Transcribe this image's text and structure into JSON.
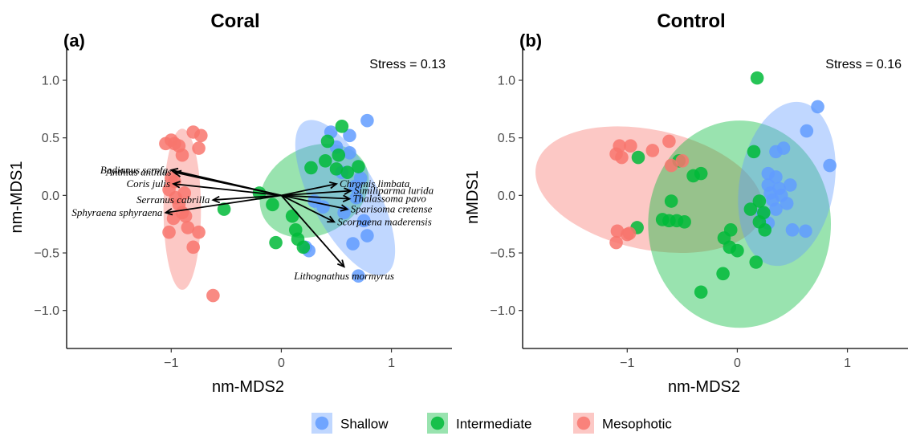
{
  "legend": {
    "items": [
      {
        "label": "Shallow",
        "color": "#619CFF"
      },
      {
        "label": "Intermediate",
        "color": "#00BA38"
      },
      {
        "label": "Mesophotic",
        "color": "#F8766D"
      }
    ]
  },
  "chart_data": [
    {
      "type": "scatter",
      "title": "Coral",
      "panel_label": "(a)",
      "annotation": "Stress = 0.13",
      "xlabel": "nm-MDS2",
      "ylabel": "nm-MDS1",
      "xlim": [
        -1.95,
        1.55
      ],
      "ylim": [
        -1.33,
        1.3
      ],
      "xticks": [
        -1,
        0,
        1
      ],
      "yticks": [
        -1.0,
        -0.5,
        0.0,
        0.5,
        1.0
      ],
      "xtick_labels": [
        "−1",
        "0",
        "1"
      ],
      "ytick_labels": [
        "−1.0",
        "−0.5",
        "0.0",
        "0.5",
        "1.0"
      ],
      "ellipses": [
        {
          "group": "Mesophotic",
          "cx": -0.9,
          "cy": -0.12,
          "rx": 0.17,
          "ry": 0.7,
          "angle": 0
        },
        {
          "group": "Intermediate",
          "cx": 0.3,
          "cy": 0.04,
          "rx": 0.52,
          "ry": 0.38,
          "angle": 28
        },
        {
          "group": "Shallow",
          "cx": 0.58,
          "cy": -0.02,
          "rx": 0.3,
          "ry": 0.75,
          "angle": 28
        }
      ],
      "series": [
        {
          "name": "Shallow",
          "points": [
            [
              0.78,
              0.65
            ],
            [
              0.62,
              0.52
            ],
            [
              0.45,
              0.55
            ],
            [
              0.62,
              0.37
            ],
            [
              0.55,
              0.2
            ],
            [
              0.72,
              0.15
            ],
            [
              0.67,
              0.08
            ],
            [
              0.68,
              -0.02
            ],
            [
              0.57,
              -0.15
            ],
            [
              0.75,
              -0.22
            ],
            [
              0.78,
              -0.35
            ],
            [
              0.65,
              -0.42
            ],
            [
              0.22,
              -0.45
            ],
            [
              0.25,
              -0.48
            ],
            [
              0.7,
              -0.7
            ],
            [
              0.38,
              -0.1
            ],
            [
              0.3,
              -0.05
            ],
            [
              0.5,
              0.42
            ]
          ]
        },
        {
          "name": "Intermediate",
          "points": [
            [
              0.55,
              0.6
            ],
            [
              0.42,
              0.47
            ],
            [
              0.52,
              0.35
            ],
            [
              0.5,
              0.23
            ],
            [
              0.4,
              0.3
            ],
            [
              0.27,
              0.24
            ],
            [
              0.7,
              0.25
            ],
            [
              -0.2,
              0.02
            ],
            [
              -0.08,
              -0.08
            ],
            [
              0.1,
              -0.18
            ],
            [
              0.13,
              -0.3
            ],
            [
              0.15,
              -0.38
            ],
            [
              -0.05,
              -0.41
            ],
            [
              0.2,
              -0.45
            ],
            [
              0.6,
              0.2
            ],
            [
              -0.52,
              -0.12
            ]
          ]
        },
        {
          "name": "Mesophotic",
          "points": [
            [
              -1.05,
              0.45
            ],
            [
              -1.0,
              0.48
            ],
            [
              -0.97,
              0.45
            ],
            [
              -0.93,
              0.43
            ],
            [
              -0.8,
              0.55
            ],
            [
              -0.73,
              0.52
            ],
            [
              -0.9,
              0.35
            ],
            [
              -0.75,
              0.41
            ],
            [
              -1.0,
              0.15
            ],
            [
              -0.97,
              0.12
            ],
            [
              -1.02,
              0.05
            ],
            [
              -0.96,
              -0.02
            ],
            [
              -0.93,
              -0.08
            ],
            [
              -0.9,
              -0.15
            ],
            [
              -0.87,
              -0.18
            ],
            [
              -0.98,
              -0.2
            ],
            [
              -0.85,
              -0.28
            ],
            [
              -1.02,
              -0.32
            ],
            [
              -0.75,
              -0.32
            ],
            [
              -0.8,
              -0.45
            ],
            [
              -0.62,
              -0.87
            ],
            [
              -0.88,
              0.02
            ]
          ]
        }
      ],
      "vectors": [
        {
          "label": "Anthias anthias",
          "x": -0.97,
          "y": 0.2
        },
        {
          "label": "Bodianus scrofa",
          "x": -1.0,
          "y": 0.22
        },
        {
          "label": "Coris julis",
          "x": -0.98,
          "y": 0.1
        },
        {
          "label": "Serranus cabrilla",
          "x": -0.62,
          "y": -0.04
        },
        {
          "label": "Sphyraena sphyraena",
          "x": -1.05,
          "y": -0.15
        },
        {
          "label": "Chromis limbata",
          "x": 0.5,
          "y": 0.1
        },
        {
          "label": "Similiparma lurida",
          "x": 0.63,
          "y": 0.04
        },
        {
          "label": "Thalassoma pavo",
          "x": 0.62,
          "y": -0.03
        },
        {
          "label": "Sparisoma cretense",
          "x": 0.6,
          "y": -0.12
        },
        {
          "label": "Scorpaena maderensis",
          "x": 0.48,
          "y": -0.23
        },
        {
          "label": "Lithognathus mormyrus",
          "x": 0.57,
          "y": -0.62
        }
      ]
    },
    {
      "type": "scatter",
      "title": "Control",
      "panel_label": "(b)",
      "annotation": "Stress = 0.16",
      "xlabel": "nm-MDS2",
      "ylabel": "nMDS1",
      "xlim": [
        -1.95,
        1.55
      ],
      "ylim": [
        -1.33,
        1.3
      ],
      "xticks": [
        -1,
        0,
        1
      ],
      "yticks": [
        -1.0,
        -0.5,
        0.0,
        0.5,
        1.0
      ],
      "xtick_labels": [
        "−1",
        "0",
        "1"
      ],
      "ytick_labels": [
        "−1.0",
        "−0.5",
        "0.0",
        "0.5",
        "1.0"
      ],
      "ellipses": [
        {
          "group": "Mesophotic",
          "cx": -0.8,
          "cy": 0.05,
          "rx": 1.05,
          "ry": 0.52,
          "angle": -12
        },
        {
          "group": "Intermediate",
          "cx": 0.02,
          "cy": -0.25,
          "rx": 0.83,
          "ry": 0.9,
          "angle": 0
        },
        {
          "group": "Shallow",
          "cx": 0.45,
          "cy": 0.1,
          "rx": 0.43,
          "ry": 0.72,
          "angle": -10
        }
      ],
      "series": [
        {
          "name": "Shallow",
          "points": [
            [
              0.73,
              0.77
            ],
            [
              0.63,
              0.56
            ],
            [
              0.84,
              0.26
            ],
            [
              0.42,
              0.41
            ],
            [
              0.35,
              0.38
            ],
            [
              0.28,
              0.19
            ],
            [
              0.35,
              0.16
            ],
            [
              0.28,
              0.09
            ],
            [
              0.3,
              0.02
            ],
            [
              0.38,
              0.06
            ],
            [
              0.32,
              -0.04
            ],
            [
              0.48,
              0.09
            ],
            [
              0.45,
              -0.07
            ],
            [
              0.35,
              -0.12
            ],
            [
              0.23,
              -0.16
            ],
            [
              0.5,
              -0.3
            ],
            [
              0.62,
              -0.31
            ],
            [
              0.28,
              -0.24
            ],
            [
              0.4,
              0.0
            ]
          ]
        },
        {
          "name": "Intermediate",
          "points": [
            [
              0.18,
              1.02
            ],
            [
              0.15,
              0.38
            ],
            [
              -0.9,
              0.33
            ],
            [
              -0.91,
              -0.28
            ],
            [
              -0.4,
              0.17
            ],
            [
              -0.33,
              0.19
            ],
            [
              -0.6,
              -0.05
            ],
            [
              -0.68,
              -0.21
            ],
            [
              -0.62,
              -0.22
            ],
            [
              -0.55,
              -0.22
            ],
            [
              -0.48,
              -0.23
            ],
            [
              -0.12,
              -0.37
            ],
            [
              -0.06,
              -0.3
            ],
            [
              -0.07,
              -0.45
            ],
            [
              0.0,
              -0.48
            ],
            [
              -0.13,
              -0.68
            ],
            [
              0.17,
              -0.58
            ],
            [
              -0.33,
              -0.84
            ],
            [
              0.2,
              -0.05
            ],
            [
              0.24,
              -0.15
            ],
            [
              0.2,
              -0.23
            ],
            [
              0.25,
              -0.3
            ],
            [
              0.12,
              -0.12
            ],
            [
              -0.53,
              0.3
            ]
          ]
        },
        {
          "name": "Mesophotic",
          "points": [
            [
              -1.07,
              0.43
            ],
            [
              -0.97,
              0.43
            ],
            [
              -1.1,
              0.36
            ],
            [
              -1.05,
              0.33
            ],
            [
              -0.77,
              0.39
            ],
            [
              -0.62,
              0.47
            ],
            [
              -0.6,
              0.26
            ],
            [
              -0.5,
              0.3
            ],
            [
              -1.09,
              -0.31
            ],
            [
              -1.0,
              -0.34
            ],
            [
              -1.1,
              -0.41
            ],
            [
              -0.98,
              -0.33
            ]
          ]
        }
      ]
    }
  ]
}
